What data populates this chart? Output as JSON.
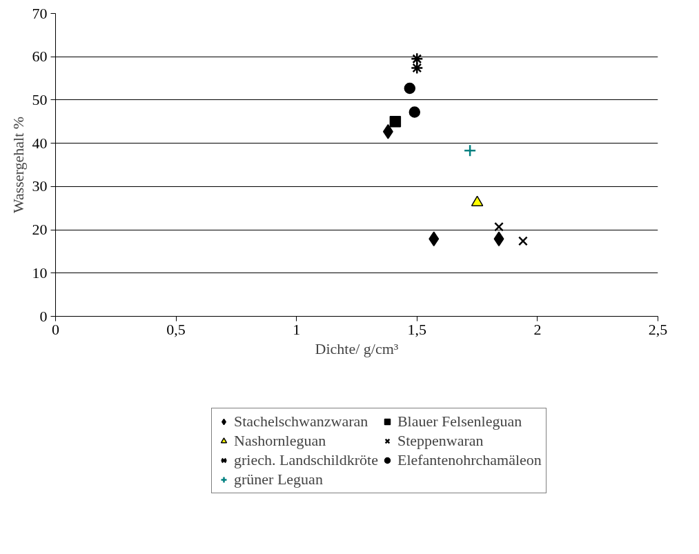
{
  "chart_data": {
    "type": "scatter",
    "xlabel": "Dichte/ g/cm³",
    "ylabel": "Wassergehalt %",
    "xlim": [
      0,
      2.5
    ],
    "xticks": [
      0,
      {
        "value": 0.5,
        "label": "0,5"
      },
      1,
      {
        "value": 1.5,
        "label": "1,5"
      },
      2,
      {
        "value": 2.5,
        "label": "2,5"
      }
    ],
    "ylim": [
      0,
      70
    ],
    "yticks": [
      0,
      10,
      20,
      30,
      40,
      50,
      60,
      70
    ],
    "grid": "y",
    "legend": "bottom",
    "series": [
      {
        "name": "Stachelschwanzwaran",
        "color": "#000000",
        "marker": "diamond",
        "x": [
          1.38,
          1.57,
          1.84
        ],
        "values": [
          42.7,
          17.9,
          17.9
        ]
      },
      {
        "name": "Blauer Felsenleguan",
        "color": "#000000",
        "marker": "square",
        "x": [
          1.41
        ],
        "values": [
          45.0
        ]
      },
      {
        "name": "Nashornleguan",
        "color": "#ffff00",
        "marker": "triangle",
        "x": [
          1.75
        ],
        "values": [
          26.3
        ]
      },
      {
        "name": "Steppenwaran",
        "color": "#000000",
        "marker": "x",
        "x": [
          1.84,
          1.94
        ],
        "values": [
          20.7,
          17.4
        ]
      },
      {
        "name": "griech. Landschildkröte",
        "color": "#000000",
        "x": [
          1.5,
          1.5
        ],
        "values": [
          59.5,
          57.4
        ]
      },
      {
        "name": "Elefantenohrchamäleon",
        "color": "#000000",
        "marker": "circle",
        "x": [
          1.47,
          1.49
        ],
        "values": [
          52.7,
          47.2
        ]
      },
      {
        "name": "grüner Leguan",
        "color": "#008080",
        "marker": "cross",
        "x": [
          1.72
        ],
        "values": [
          38.3
        ]
      }
    ]
  }
}
